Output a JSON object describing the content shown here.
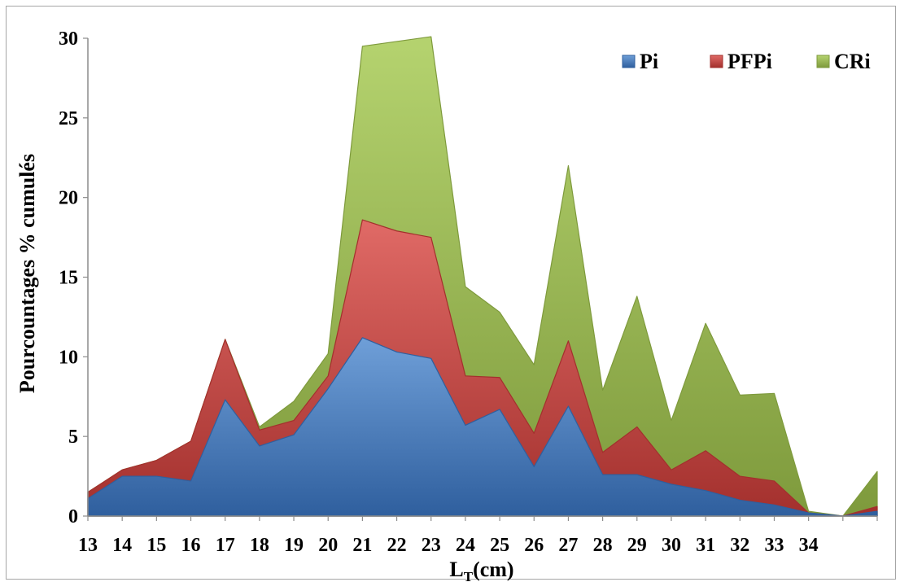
{
  "chart_data": {
    "type": "area",
    "stacked": true,
    "x": [
      "13",
      "14",
      "15",
      "16",
      "17",
      "18",
      "19",
      "20",
      "21",
      "22",
      "23",
      "24",
      "25",
      "26",
      "27",
      "28",
      "29",
      "30",
      "31",
      "32",
      "33",
      "34",
      "",
      ""
    ],
    "xlabel": "L",
    "xlabel_sub": "T",
    "xlabel_unit": "(cm)",
    "ylabel": "Pourcountages % cumulés",
    "ylim": [
      0,
      30
    ],
    "yticks": [
      "0",
      "5",
      "10",
      "15",
      "20",
      "25",
      "30"
    ],
    "legend_position": "top-right",
    "series": [
      {
        "name": "Pi",
        "color": "#4a7ebb",
        "values": [
          1.1,
          2.5,
          2.5,
          2.2,
          7.3,
          4.4,
          5.1,
          8.0,
          11.2,
          10.3,
          9.9,
          5.7,
          6.7,
          3.1,
          6.9,
          2.6,
          2.6,
          2.0,
          1.6,
          1.0,
          0.7,
          0.2,
          0.0,
          0.3
        ]
      },
      {
        "name": "PFPi",
        "color": "#c0504d",
        "values": [
          0.4,
          0.4,
          1.0,
          2.5,
          3.8,
          1.0,
          0.9,
          0.8,
          7.4,
          7.6,
          7.6,
          3.1,
          2.0,
          2.1,
          4.1,
          1.4,
          3.0,
          0.9,
          2.5,
          1.5,
          1.5,
          0.0,
          0.0,
          0.3
        ]
      },
      {
        "name": "CRi",
        "color": "#9bbb59",
        "values": [
          0.0,
          0.0,
          0.0,
          0.0,
          0.0,
          0.2,
          1.2,
          1.4,
          10.9,
          11.9,
          12.6,
          5.6,
          4.1,
          4.3,
          11.0,
          3.9,
          8.2,
          3.1,
          8.0,
          5.1,
          5.5,
          0.1,
          0.0,
          2.2
        ]
      }
    ]
  }
}
